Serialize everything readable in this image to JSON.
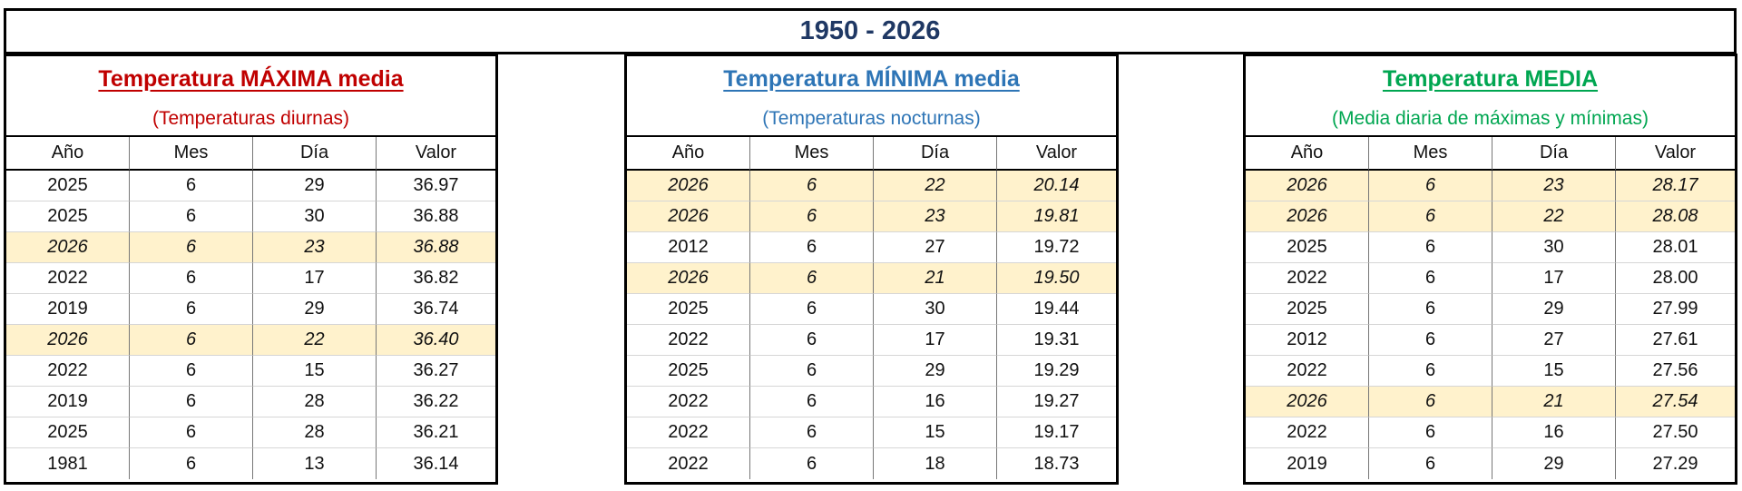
{
  "title": "1950 - 2026",
  "colors": {
    "max": "#c00000",
    "min": "#2e75b6",
    "media": "#00a651",
    "highlight": "#fff2cc",
    "title": "#1f3864"
  },
  "columns": [
    "Año",
    "Mes",
    "Día",
    "Valor"
  ],
  "panels": [
    {
      "title": "Temperatura MÁXIMA media",
      "subtitle": "(Temperaturas diurnas)",
      "rows": [
        {
          "year": "2025",
          "month": "6",
          "day": "29",
          "value": "36.97",
          "highlight": false
        },
        {
          "year": "2025",
          "month": "6",
          "day": "30",
          "value": "36.88",
          "highlight": false
        },
        {
          "year": "2026",
          "month": "6",
          "day": "23",
          "value": "36.88",
          "highlight": true
        },
        {
          "year": "2022",
          "month": "6",
          "day": "17",
          "value": "36.82",
          "highlight": false
        },
        {
          "year": "2019",
          "month": "6",
          "day": "29",
          "value": "36.74",
          "highlight": false
        },
        {
          "year": "2026",
          "month": "6",
          "day": "22",
          "value": "36.40",
          "highlight": true
        },
        {
          "year": "2022",
          "month": "6",
          "day": "15",
          "value": "36.27",
          "highlight": false
        },
        {
          "year": "2019",
          "month": "6",
          "day": "28",
          "value": "36.22",
          "highlight": false
        },
        {
          "year": "2025",
          "month": "6",
          "day": "28",
          "value": "36.21",
          "highlight": false
        },
        {
          "year": "1981",
          "month": "6",
          "day": "13",
          "value": "36.14",
          "highlight": false
        }
      ]
    },
    {
      "title": "Temperatura MÍNIMA media",
      "subtitle": "(Temperaturas nocturnas)",
      "rows": [
        {
          "year": "2026",
          "month": "6",
          "day": "22",
          "value": "20.14",
          "highlight": true
        },
        {
          "year": "2026",
          "month": "6",
          "day": "23",
          "value": "19.81",
          "highlight": true
        },
        {
          "year": "2012",
          "month": "6",
          "day": "27",
          "value": "19.72",
          "highlight": false
        },
        {
          "year": "2026",
          "month": "6",
          "day": "21",
          "value": "19.50",
          "highlight": true
        },
        {
          "year": "2025",
          "month": "6",
          "day": "30",
          "value": "19.44",
          "highlight": false
        },
        {
          "year": "2022",
          "month": "6",
          "day": "17",
          "value": "19.31",
          "highlight": false
        },
        {
          "year": "2025",
          "month": "6",
          "day": "29",
          "value": "19.29",
          "highlight": false
        },
        {
          "year": "2022",
          "month": "6",
          "day": "16",
          "value": "19.27",
          "highlight": false
        },
        {
          "year": "2022",
          "month": "6",
          "day": "15",
          "value": "19.17",
          "highlight": false
        },
        {
          "year": "2022",
          "month": "6",
          "day": "18",
          "value": "18.73",
          "highlight": false
        }
      ]
    },
    {
      "title": "Temperatura MEDIA",
      "subtitle": "(Media diaria de máximas y mínimas)",
      "rows": [
        {
          "year": "2026",
          "month": "6",
          "day": "23",
          "value": "28.17",
          "highlight": true
        },
        {
          "year": "2026",
          "month": "6",
          "day": "22",
          "value": "28.08",
          "highlight": true
        },
        {
          "year": "2025",
          "month": "6",
          "day": "30",
          "value": "28.01",
          "highlight": false
        },
        {
          "year": "2022",
          "month": "6",
          "day": "17",
          "value": "28.00",
          "highlight": false
        },
        {
          "year": "2025",
          "month": "6",
          "day": "29",
          "value": "27.99",
          "highlight": false
        },
        {
          "year": "2012",
          "month": "6",
          "day": "27",
          "value": "27.61",
          "highlight": false
        },
        {
          "year": "2022",
          "month": "6",
          "day": "15",
          "value": "27.56",
          "highlight": false
        },
        {
          "year": "2026",
          "month": "6",
          "day": "21",
          "value": "27.54",
          "highlight": true
        },
        {
          "year": "2022",
          "month": "6",
          "day": "16",
          "value": "27.50",
          "highlight": false
        },
        {
          "year": "2019",
          "month": "6",
          "day": "29",
          "value": "27.29",
          "highlight": false
        }
      ]
    }
  ]
}
